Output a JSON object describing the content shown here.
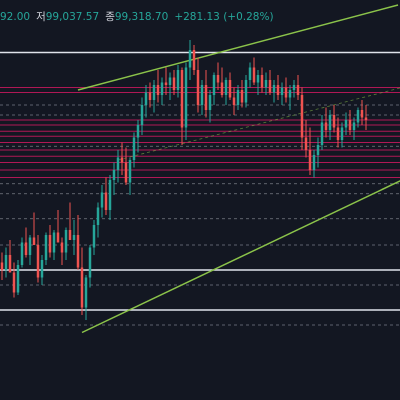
{
  "header": {
    "open_partial": "92.00",
    "low_label": "저",
    "low_value": "99,037.57",
    "close_label": "종",
    "close_value": "99,318.70",
    "change": "+281.13 (+0.28%)"
  },
  "colors": {
    "background": "#131722",
    "up": "#26a69a",
    "down": "#ef5350",
    "channel": "#8bc34a",
    "white_level": "#e0e3eb",
    "red_level": "#c2185b",
    "dashed_level": "#787b86",
    "text": "#d1d4dc"
  },
  "chart_data": {
    "type": "candlestick",
    "x_index_range": [
      0,
      100
    ],
    "ylim": [
      88500,
      102500
    ],
    "candles": [
      [
        0,
        93200,
        93600,
        92500,
        92900
      ],
      [
        1,
        92900,
        93800,
        92600,
        93500
      ],
      [
        2,
        93500,
        94100,
        92800,
        92800
      ],
      [
        3,
        92800,
        93200,
        91800,
        92000
      ],
      [
        4,
        92000,
        93300,
        91900,
        93100
      ],
      [
        5,
        93100,
        94200,
        93000,
        94000
      ],
      [
        6,
        94000,
        94600,
        93400,
        93500
      ],
      [
        7,
        93500,
        94300,
        93100,
        94200
      ],
      [
        8,
        94200,
        95200,
        93900,
        93900
      ],
      [
        9,
        93900,
        94300,
        92400,
        92600
      ],
      [
        10,
        92600,
        93500,
        92300,
        93300
      ],
      [
        11,
        93300,
        94400,
        93100,
        94300
      ],
      [
        12,
        94300,
        94700,
        93400,
        93600
      ],
      [
        13,
        93600,
        94500,
        93300,
        94400
      ],
      [
        14,
        94400,
        95300,
        94000,
        94000
      ],
      [
        15,
        94000,
        94200,
        93100,
        93600
      ],
      [
        16,
        93600,
        94600,
        93300,
        94500
      ],
      [
        17,
        94500,
        95600,
        94200,
        94100
      ],
      [
        18,
        94100,
        94900,
        93500,
        94300
      ],
      [
        19,
        94300,
        95100,
        92900,
        93000
      ],
      [
        20,
        93000,
        93800,
        91100,
        91400
      ],
      [
        21,
        91400,
        92700,
        90900,
        92600
      ],
      [
        22,
        92600,
        93900,
        92200,
        93800
      ],
      [
        23,
        93800,
        94900,
        93500,
        94700
      ],
      [
        24,
        94700,
        95600,
        94200,
        95400
      ],
      [
        25,
        95400,
        96300,
        95000,
        96000
      ],
      [
        26,
        96000,
        96600,
        95100,
        95300
      ],
      [
        27,
        95300,
        96700,
        94900,
        96500
      ],
      [
        28,
        96500,
        97200,
        95900,
        96900
      ],
      [
        29,
        96900,
        97700,
        96400,
        97400
      ],
      [
        30,
        97400,
        98000,
        96700,
        97200
      ],
      [
        31,
        97200,
        97800,
        96300,
        96400
      ],
      [
        32,
        96400,
        97400,
        95900,
        97300
      ],
      [
        33,
        97300,
        98400,
        97000,
        98200
      ],
      [
        34,
        98200,
        98900,
        97600,
        98700
      ],
      [
        35,
        98700,
        99800,
        98300,
        99500
      ],
      [
        36,
        99500,
        100300,
        99000,
        100000
      ],
      [
        37,
        100000,
        100400,
        99400,
        99700
      ],
      [
        38,
        99700,
        100500,
        99200,
        100300
      ],
      [
        39,
        100300,
        100900,
        99600,
        99900
      ],
      [
        40,
        99900,
        100600,
        99500,
        100400
      ],
      [
        41,
        100400,
        101000,
        99900,
        100300
      ],
      [
        42,
        100300,
        100800,
        99700,
        100600
      ],
      [
        43,
        100600,
        100900,
        99900,
        100100
      ],
      [
        44,
        100100,
        101100,
        99800,
        100900
      ],
      [
        45,
        100900,
        101000,
        97900,
        98600
      ],
      [
        46,
        98600,
        101200,
        98100,
        101000
      ],
      [
        47,
        101000,
        102100,
        100500,
        101700
      ],
      [
        48,
        101700,
        101900,
        100700,
        100900
      ],
      [
        49,
        100900,
        101400,
        99200,
        99500
      ],
      [
        50,
        99500,
        100500,
        99100,
        100300
      ],
      [
        51,
        100300,
        100900,
        99000,
        99300
      ],
      [
        52,
        99300,
        100100,
        98800,
        99900
      ],
      [
        53,
        99900,
        100800,
        99500,
        100700
      ],
      [
        54,
        100700,
        101200,
        100100,
        100400
      ],
      [
        55,
        100400,
        101000,
        99800,
        99900
      ],
      [
        56,
        99900,
        100600,
        99500,
        100500
      ],
      [
        57,
        100500,
        100800,
        99700,
        99800
      ],
      [
        58,
        99800,
        100200,
        99100,
        99500
      ],
      [
        59,
        99500,
        100300,
        99300,
        100100
      ],
      [
        60,
        100100,
        100500,
        99400,
        99600
      ],
      [
        61,
        99600,
        100700,
        99400,
        100500
      ],
      [
        62,
        100500,
        101200,
        100200,
        101000
      ],
      [
        63,
        101000,
        101400,
        100300,
        100400
      ],
      [
        64,
        100400,
        100900,
        99900,
        100700
      ],
      [
        65,
        100700,
        101000,
        100000,
        100200
      ],
      [
        66,
        100200,
        100800,
        99900,
        100500
      ],
      [
        67,
        100500,
        100900,
        99900,
        100000
      ],
      [
        68,
        100000,
        100500,
        99600,
        100300
      ],
      [
        69,
        100300,
        100700,
        99700,
        99900
      ],
      [
        70,
        99900,
        100400,
        99500,
        100200
      ],
      [
        71,
        100200,
        100600,
        99600,
        99800
      ],
      [
        72,
        99800,
        100300,
        99300,
        100100
      ],
      [
        73,
        100100,
        100500,
        99800,
        100300
      ],
      [
        74,
        100300,
        100700,
        99700,
        99900
      ],
      [
        75,
        99900,
        100200,
        97700,
        98200
      ],
      [
        76,
        98200,
        98900,
        97400,
        97700
      ],
      [
        77,
        97700,
        98600,
        96700,
        96900
      ],
      [
        78,
        96900,
        97700,
        96600,
        97500
      ],
      [
        79,
        97500,
        98200,
        97000,
        97900
      ],
      [
        80,
        97900,
        99100,
        97700,
        98800
      ],
      [
        81,
        98800,
        99400,
        98200,
        98500
      ],
      [
        82,
        98500,
        99300,
        98100,
        99100
      ],
      [
        83,
        99100,
        99500,
        98400,
        98600
      ],
      [
        84,
        98600,
        99000,
        97800,
        98100
      ],
      [
        85,
        98100,
        98800,
        97800,
        98600
      ],
      [
        86,
        98600,
        99200,
        98300,
        98900
      ],
      [
        87,
        98900,
        99300,
        98300,
        98500
      ],
      [
        88,
        98500,
        99000,
        98100,
        98800
      ],
      [
        89,
        98800,
        99400,
        98600,
        99300
      ],
      [
        90,
        99300,
        99700,
        98700,
        99000
      ],
      [
        91,
        99000,
        99500,
        98500,
        98900
      ]
    ],
    "horizontal_levels": [
      {
        "style": "solid-white",
        "value": 101600
      },
      {
        "style": "solid-white",
        "value": 92900
      },
      {
        "style": "solid-white",
        "value": 91300
      },
      {
        "style": "solid-red",
        "value": 100200
      },
      {
        "style": "solid-red",
        "value": 100000
      },
      {
        "style": "solid-red",
        "value": 98900
      },
      {
        "style": "solid-red",
        "value": 98700
      },
      {
        "style": "solid-red",
        "value": 98450
      },
      {
        "style": "solid-red",
        "value": 98250
      },
      {
        "style": "solid-red",
        "value": 98000
      },
      {
        "style": "solid-red",
        "value": 97700
      },
      {
        "style": "solid-red",
        "value": 97450
      },
      {
        "style": "solid-red",
        "value": 97200
      },
      {
        "style": "solid-red",
        "value": 96900
      },
      {
        "style": "solid-red",
        "value": 96600
      },
      {
        "style": "dashed",
        "value": 99500
      },
      {
        "style": "dashed",
        "value": 99100
      },
      {
        "style": "dashed",
        "value": 97850
      },
      {
        "style": "dashed",
        "value": 96350
      },
      {
        "style": "dashed",
        "value": 95950
      },
      {
        "style": "dashed",
        "value": 94950
      },
      {
        "style": "dashed",
        "value": 93900
      },
      {
        "style": "dashed",
        "value": 92300
      },
      {
        "style": "dashed",
        "value": 90700
      }
    ],
    "trendlines": [
      {
        "name": "channel-upper",
        "style": "solid",
        "from": [
          19,
          100100
        ],
        "to": [
          99,
          103500
        ]
      },
      {
        "name": "channel-lower",
        "style": "solid",
        "from": [
          20,
          90400
        ],
        "to": [
          100,
          96500
        ]
      },
      {
        "name": "channel-mid",
        "style": "dashed",
        "from": [
          29,
          97300
        ],
        "to": [
          100,
          100200
        ]
      }
    ]
  }
}
